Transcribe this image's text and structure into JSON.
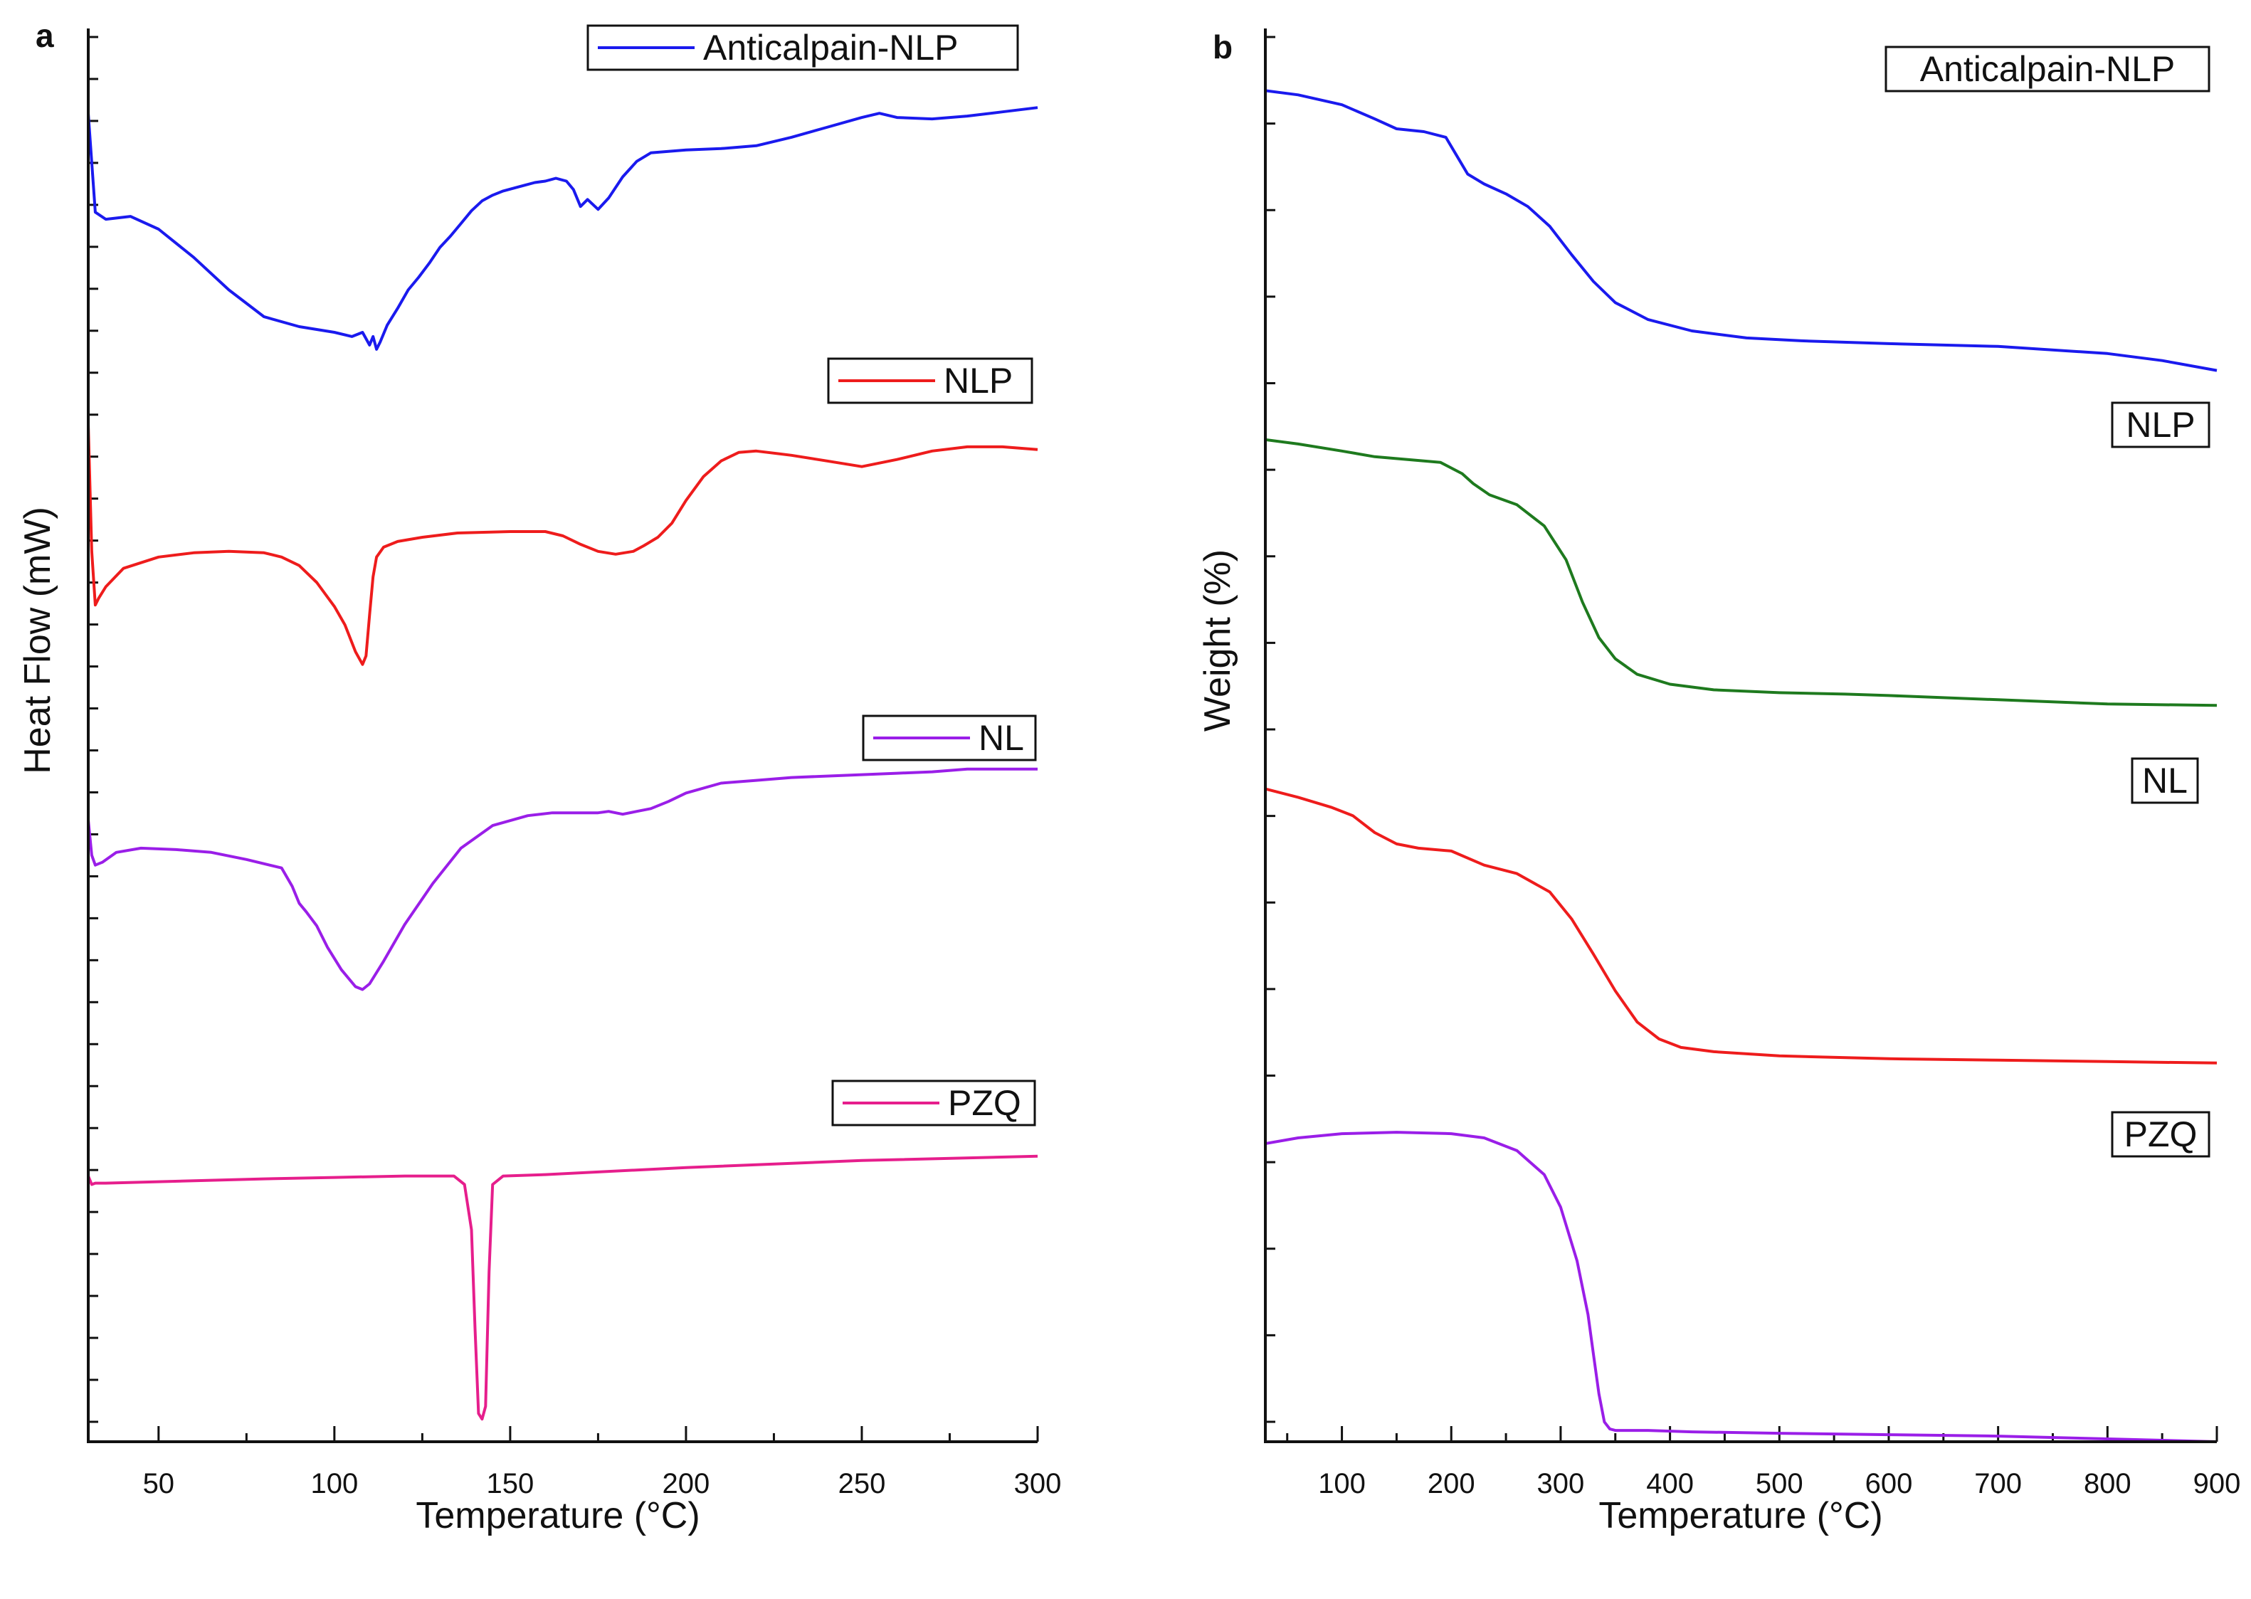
{
  "chart_data": [
    {
      "panel": "a",
      "type": "line",
      "title": "",
      "xlabel": "Temperature (°C)",
      "ylabel": "Heat Flow (mW)",
      "xlim": [
        30,
        300
      ],
      "xticks": [
        50,
        100,
        150,
        200,
        250,
        300
      ],
      "ylim": [
        0,
        100
      ],
      "y_ticks_labelled": false,
      "y_minor_tick_count": 33,
      "grid": false,
      "legend_style": "boxed label with line sample, placed above each curve on the right",
      "series": [
        {
          "name": "Anticalpain-NLP",
          "color": "#1a1aee",
          "x": [
            30,
            32,
            35,
            42,
            50,
            60,
            70,
            80,
            90,
            100,
            105,
            108,
            110,
            111,
            112,
            113,
            115,
            118,
            121,
            124,
            127,
            130,
            133,
            136,
            139,
            142,
            145,
            148,
            151,
            154,
            157,
            160,
            163,
            166,
            168,
            170,
            172,
            175,
            178,
            182,
            186,
            190,
            200,
            210,
            220,
            230,
            240,
            250,
            255,
            260,
            270,
            280,
            290,
            300
          ],
          "y": [
            94,
            87,
            86.5,
            86.7,
            85.8,
            83.8,
            81.5,
            79.6,
            78.9,
            78.5,
            78.2,
            78.5,
            77.6,
            78.2,
            77.3,
            77.8,
            79,
            80.2,
            81.5,
            82.4,
            83.4,
            84.5,
            85.3,
            86.2,
            87.1,
            87.8,
            88.2,
            88.5,
            88.7,
            88.9,
            89.1,
            89.2,
            89.4,
            89.2,
            88.6,
            87.4,
            87.9,
            87.2,
            88.0,
            89.5,
            90.6,
            91.2,
            91.4,
            91.5,
            91.7,
            92.3,
            93.0,
            93.7,
            94.0,
            93.7,
            93.6,
            93.8,
            94.1,
            94.4
          ]
        },
        {
          "name": "NLP",
          "color": "#ee1c1c",
          "x": [
            30,
            31,
            32,
            33,
            35,
            40,
            50,
            60,
            70,
            80,
            85,
            90,
            95,
            100,
            103,
            106,
            108,
            109,
            110,
            111,
            112,
            114,
            118,
            125,
            135,
            150,
            160,
            165,
            170,
            175,
            180,
            185,
            188,
            192,
            196,
            200,
            205,
            210,
            215,
            220,
            230,
            240,
            250,
            260,
            270,
            280,
            290,
            300
          ],
          "y": [
            72,
            63,
            59.2,
            59.7,
            60.5,
            61.8,
            62.6,
            62.9,
            63.0,
            62.9,
            62.6,
            62.0,
            60.8,
            59.1,
            57.8,
            55.9,
            55.0,
            55.6,
            58.5,
            61.2,
            62.6,
            63.3,
            63.7,
            64.0,
            64.3,
            64.4,
            64.4,
            64.1,
            63.5,
            63.0,
            62.8,
            63.0,
            63.4,
            64.0,
            65.0,
            66.6,
            68.3,
            69.4,
            70.0,
            70.1,
            69.8,
            69.4,
            69.0,
            69.5,
            70.1,
            70.4,
            70.4,
            70.2
          ]
        },
        {
          "name": "NL",
          "color": "#9a1ee8",
          "x": [
            30,
            31,
            32,
            34,
            38,
            45,
            55,
            65,
            75,
            85,
            88,
            90,
            92,
            95,
            98,
            102,
            106,
            108,
            110,
            114,
            120,
            128,
            136,
            145,
            155,
            162,
            170,
            175,
            178,
            182,
            186,
            190,
            195,
            200,
            210,
            220,
            230,
            240,
            250,
            260,
            270,
            280,
            290,
            300
          ],
          "y": [
            44,
            41.5,
            40.8,
            41.0,
            41.7,
            42.0,
            41.9,
            41.7,
            41.2,
            40.6,
            39.3,
            38.1,
            37.5,
            36.5,
            35.0,
            33.4,
            32.2,
            32.0,
            32.4,
            34.0,
            36.6,
            39.5,
            42.0,
            43.6,
            44.3,
            44.5,
            44.5,
            44.5,
            44.6,
            44.4,
            44.6,
            44.8,
            45.3,
            45.9,
            46.6,
            46.8,
            47.0,
            47.1,
            47.2,
            47.3,
            47.4,
            47.6,
            47.6,
            47.6
          ]
        },
        {
          "name": "PZQ",
          "color": "#e61e8c",
          "x": [
            30,
            31,
            32,
            35,
            50,
            80,
            100,
            120,
            134,
            137,
            139,
            140,
            141,
            142,
            143,
            144,
            145,
            148,
            160,
            200,
            250,
            300
          ],
          "y": [
            18.8,
            18.2,
            18.3,
            18.3,
            18.4,
            18.6,
            18.7,
            18.8,
            18.8,
            18.2,
            15,
            8,
            2,
            1.6,
            2.5,
            12,
            18.2,
            18.8,
            18.9,
            19.4,
            19.9,
            20.2
          ]
        }
      ]
    },
    {
      "panel": "b",
      "type": "line",
      "title": "",
      "xlabel": "Temperature (°C)",
      "ylabel": "Weight (%)",
      "xlim": [
        30,
        900
      ],
      "xticks": [
        100,
        200,
        300,
        400,
        500,
        600,
        700,
        800,
        900
      ],
      "ylim": [
        0,
        100
      ],
      "y_ticks_labelled": false,
      "y_minor_tick_count": 16,
      "grid": false,
      "legend_style": "boxed label only, placed above each curve on the right",
      "series": [
        {
          "name": "Anticalpain-NLP",
          "color": "#1a1aee",
          "x": [
            30,
            60,
            100,
            130,
            150,
            175,
            195,
            205,
            215,
            230,
            250,
            270,
            290,
            310,
            330,
            350,
            380,
            420,
            470,
            520,
            600,
            700,
            800,
            850,
            900
          ],
          "y": [
            95.6,
            95.3,
            94.6,
            93.6,
            92.9,
            92.7,
            92.3,
            91.0,
            89.7,
            89.0,
            88.3,
            87.4,
            86.0,
            84.0,
            82.1,
            80.6,
            79.4,
            78.6,
            78.1,
            77.9,
            77.7,
            77.5,
            77.0,
            76.5,
            75.8
          ]
        },
        {
          "name": "NLP",
          "color": "#1e7a1e",
          "x": [
            30,
            60,
            100,
            130,
            160,
            190,
            210,
            220,
            235,
            260,
            285,
            305,
            320,
            335,
            350,
            370,
            400,
            440,
            500,
            560,
            600,
            700,
            800,
            900
          ],
          "y": [
            70.9,
            70.6,
            70.1,
            69.7,
            69.5,
            69.3,
            68.5,
            67.8,
            67.0,
            66.3,
            64.8,
            62.4,
            59.4,
            56.9,
            55.4,
            54.3,
            53.6,
            53.2,
            53.0,
            52.9,
            52.8,
            52.5,
            52.2,
            52.1
          ]
        },
        {
          "name": "NL",
          "color": "#ee1c1c",
          "x": [
            30,
            60,
            90,
            110,
            130,
            150,
            170,
            200,
            230,
            260,
            290,
            310,
            330,
            350,
            370,
            390,
            410,
            440,
            500,
            600,
            700,
            800,
            900
          ],
          "y": [
            46.2,
            45.6,
            44.9,
            44.3,
            43.1,
            42.3,
            42.0,
            41.8,
            40.8,
            40.2,
            38.9,
            37.0,
            34.5,
            31.9,
            29.7,
            28.5,
            27.9,
            27.6,
            27.3,
            27.1,
            27.0,
            26.9,
            26.8
          ]
        },
        {
          "name": "PZQ",
          "color": "#9a1ee8",
          "x": [
            30,
            60,
            100,
            150,
            200,
            230,
            260,
            285,
            300,
            315,
            325,
            330,
            335,
            340,
            345,
            350,
            360,
            380,
            420,
            500,
            600,
            700,
            800,
            900
          ],
          "y": [
            21.1,
            21.5,
            21.8,
            21.9,
            21.8,
            21.5,
            20.6,
            18.9,
            16.6,
            12.8,
            9.0,
            6.2,
            3.4,
            1.4,
            0.9,
            0.8,
            0.8,
            0.8,
            0.7,
            0.6,
            0.5,
            0.4,
            0.2,
            0.0
          ]
        }
      ]
    }
  ]
}
